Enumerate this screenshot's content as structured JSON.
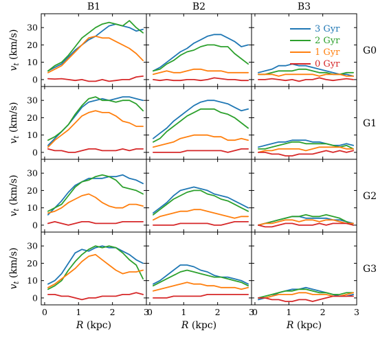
{
  "chart_data": {
    "type": "line",
    "layout": "4x3 grid of line plots",
    "columns": [
      "B1",
      "B2",
      "B3"
    ],
    "rows": [
      "G0",
      "G1",
      "G2",
      "G3"
    ],
    "xlabel": "R (kpc)",
    "ylabel": "v_t (km/s)",
    "ylabel_display": "vt (km/s)",
    "xlim": [
      -0.1,
      3.0
    ],
    "ylim": [
      -4,
      38
    ],
    "xticks": [
      0,
      1,
      2,
      3
    ],
    "yticks": [
      0,
      10,
      20,
      30
    ],
    "xtick_labels": [
      "0",
      "1",
      "2",
      "3"
    ],
    "ytick_labels": [
      "0",
      "10",
      "20",
      "30"
    ],
    "grid": false,
    "legend": {
      "location": "upper-right of panel B3-G0",
      "entries": [
        "3 Gyr",
        "2 Gyr",
        "1 Gyr",
        "0 Gyr"
      ]
    },
    "series_styles": [
      {
        "name": "3 Gyr",
        "color": "#1f77b4"
      },
      {
        "name": "2 Gyr",
        "color": "#2ca02c"
      },
      {
        "name": "1 Gyr",
        "color": "#ff7f0e"
      },
      {
        "name": "0 Gyr",
        "color": "#d62728"
      }
    ],
    "x": [
      0.1,
      0.3,
      0.5,
      0.7,
      0.9,
      1.1,
      1.3,
      1.5,
      1.7,
      1.9,
      2.1,
      2.3,
      2.5,
      2.7,
      2.9
    ],
    "panels": [
      {
        "col": "B1",
        "row": "G0",
        "series": [
          {
            "name": "3 Gyr",
            "values": [
              5,
              7,
              9,
              13,
              17,
              20,
              23,
              25,
              28,
              31,
              32,
              31,
              30,
              28,
              29
            ]
          },
          {
            "name": "2 Gyr",
            "values": [
              5,
              8,
              10,
              14,
              19,
              24,
              27,
              30,
              32,
              33,
              32,
              31,
              34,
              30,
              27
            ]
          },
          {
            "name": "1 Gyr",
            "values": [
              4,
              6,
              8,
              12,
              16,
              20,
              24,
              25,
              24,
              24,
              22,
              20,
              18,
              15,
              11
            ]
          },
          {
            "name": "0 Gyr",
            "values": [
              0.5,
              0.3,
              0.5,
              0,
              -0.5,
              0,
              -1,
              -1,
              0,
              -1,
              -0.5,
              0,
              0,
              1.5,
              2
            ]
          }
        ]
      },
      {
        "col": "B2",
        "row": "G0",
        "series": [
          {
            "name": "3 Gyr",
            "values": [
              5,
              7,
              10,
              13,
              16,
              18,
              21,
              23,
              25,
              26,
              26,
              24,
              22,
              19,
              20
            ]
          },
          {
            "name": "2 Gyr",
            "values": [
              5,
              6,
              9,
              11,
              14,
              16,
              17,
              19,
              20,
              20,
              19,
              19,
              15,
              12,
              9
            ]
          },
          {
            "name": "1 Gyr",
            "values": [
              3,
              4,
              5,
              4,
              4,
              5,
              6,
              6,
              5,
              5,
              5,
              4,
              4,
              4,
              4
            ]
          },
          {
            "name": "0 Gyr",
            "values": [
              0,
              -0.5,
              0,
              -0.5,
              -0.5,
              0,
              0,
              -0.5,
              0,
              1,
              0.5,
              0,
              0,
              -0.5,
              -0.5
            ]
          }
        ]
      },
      {
        "col": "B3",
        "row": "G0",
        "series": [
          {
            "name": "3 Gyr",
            "values": [
              4,
              5,
              6,
              8,
              8,
              9,
              8,
              8,
              7,
              6,
              5,
              4,
              3,
              3,
              2
            ]
          },
          {
            "name": "2 Gyr",
            "values": [
              3,
              3,
              4,
              5,
              5,
              5,
              6,
              6,
              5,
              4,
              4,
              3,
              3,
              4,
              4
            ]
          },
          {
            "name": "1 Gyr",
            "values": [
              3,
              3,
              3,
              2,
              3,
              3,
              3,
              3,
              3,
              2,
              3,
              3,
              3,
              2,
              2
            ]
          },
          {
            "name": "0 Gyr",
            "values": [
              0,
              0,
              0.5,
              0,
              -0.5,
              0,
              -1,
              0,
              0,
              1,
              0,
              -0.5,
              0,
              0.5,
              0
            ]
          }
        ]
      },
      {
        "col": "B1",
        "row": "G1",
        "series": [
          {
            "name": "3 Gyr",
            "values": [
              4,
              8,
              12,
              16,
              21,
              26,
              29,
              30,
              31,
              30,
              31,
              32,
              32,
              31,
              30
            ]
          },
          {
            "name": "2 Gyr",
            "values": [
              7,
              9,
              12,
              16,
              22,
              27,
              31,
              32,
              30,
              30,
              29,
              30,
              30,
              28,
              24
            ]
          },
          {
            "name": "1 Gyr",
            "values": [
              3,
              7,
              10,
              13,
              17,
              21,
              23,
              24,
              23,
              23,
              21,
              18,
              17,
              15,
              15
            ]
          },
          {
            "name": "0 Gyr",
            "values": [
              2,
              1,
              1,
              0,
              0,
              1,
              2,
              2,
              1,
              1,
              1,
              2,
              1,
              2,
              2
            ]
          }
        ]
      },
      {
        "col": "B2",
        "row": "G1",
        "series": [
          {
            "name": "3 Gyr",
            "values": [
              8,
              11,
              14,
              18,
              21,
              24,
              27,
              29,
              30,
              30,
              29,
              28,
              26,
              24,
              25
            ]
          },
          {
            "name": "2 Gyr",
            "values": [
              6,
              8,
              12,
              15,
              18,
              21,
              23,
              25,
              25,
              25,
              23,
              22,
              20,
              17,
              14
            ]
          },
          {
            "name": "1 Gyr",
            "values": [
              3,
              4,
              5,
              6,
              8,
              9,
              10,
              10,
              10,
              9,
              9,
              7,
              7,
              8,
              7
            ]
          },
          {
            "name": "0 Gyr",
            "values": [
              0,
              0,
              0,
              0,
              0,
              1,
              1,
              1,
              1,
              1,
              1,
              0,
              1,
              2,
              2
            ]
          }
        ]
      },
      {
        "col": "B3",
        "row": "G1",
        "series": [
          {
            "name": "3 Gyr",
            "values": [
              3,
              4,
              5,
              6,
              6,
              7,
              7,
              7,
              6,
              6,
              5,
              4,
              4,
              5,
              4
            ]
          },
          {
            "name": "2 Gyr",
            "values": [
              2,
              2,
              3,
              4,
              5,
              6,
              6,
              5,
              5,
              5,
              5,
              4,
              3,
              4,
              2
            ]
          },
          {
            "name": "1 Gyr",
            "values": [
              0,
              1,
              1,
              2,
              2,
              2,
              2,
              1,
              2,
              3,
              3,
              3,
              3,
              2,
              2
            ]
          },
          {
            "name": "0 Gyr",
            "values": [
              0,
              0,
              -1,
              -1,
              -2,
              -2,
              -1,
              -1,
              -1,
              0,
              1,
              0,
              1,
              0,
              1
            ]
          }
        ]
      },
      {
        "col": "B1",
        "row": "G2",
        "series": [
          {
            "name": "3 Gyr",
            "values": [
              6,
              10,
              14,
              19,
              23,
              25,
              27,
              27,
              27,
              28,
              28,
              29,
              27,
              26,
              24
            ]
          },
          {
            "name": "2 Gyr",
            "values": [
              8,
              10,
              12,
              17,
              22,
              25,
              26,
              28,
              29,
              28,
              26,
              22,
              21,
              20,
              18
            ]
          },
          {
            "name": "1 Gyr",
            "values": [
              7,
              8,
              10,
              13,
              15,
              17,
              18,
              16,
              13,
              11,
              10,
              10,
              12,
              12,
              11
            ]
          },
          {
            "name": "0 Gyr",
            "values": [
              1,
              2,
              1,
              0,
              1,
              2,
              2,
              1,
              1,
              1,
              1,
              2,
              2,
              2,
              2
            ]
          }
        ]
      },
      {
        "col": "B2",
        "row": "G2",
        "series": [
          {
            "name": "3 Gyr",
            "values": [
              7,
              10,
              13,
              17,
              20,
              21,
              22,
              21,
              20,
              18,
              17,
              16,
              14,
              12,
              10
            ]
          },
          {
            "name": "2 Gyr",
            "values": [
              6,
              9,
              12,
              15,
              17,
              19,
              20,
              20,
              18,
              17,
              15,
              14,
              12,
              10,
              8
            ]
          },
          {
            "name": "1 Gyr",
            "values": [
              3,
              5,
              6,
              7,
              8,
              8,
              9,
              9,
              8,
              7,
              6,
              5,
              4,
              5,
              5
            ]
          },
          {
            "name": "0 Gyr",
            "values": [
              0,
              0,
              0,
              0,
              1,
              1,
              1,
              1,
              1,
              0,
              0,
              1,
              2,
              2,
              2
            ]
          }
        ]
      },
      {
        "col": "B3",
        "row": "G2",
        "series": [
          {
            "name": "3 Gyr",
            "values": [
              0,
              1,
              2,
              3,
              4,
              5,
              5,
              4,
              4,
              4,
              4,
              3,
              3,
              2,
              1
            ]
          },
          {
            "name": "2 Gyr",
            "values": [
              0,
              1,
              2,
              3,
              4,
              5,
              5,
              6,
              5,
              5,
              6,
              5,
              4,
              2,
              0
            ]
          },
          {
            "name": "1 Gyr",
            "values": [
              0,
              1,
              1,
              2,
              3,
              3,
              2,
              3,
              3,
              2,
              3,
              3,
              2,
              1,
              1
            ]
          },
          {
            "name": "0 Gyr",
            "values": [
              0,
              -1,
              -1,
              0,
              1,
              1,
              0,
              0,
              0,
              1,
              0,
              1,
              1,
              1,
              0
            ]
          }
        ]
      },
      {
        "col": "B1",
        "row": "G3",
        "series": [
          {
            "name": "3 Gyr",
            "values": [
              8,
              10,
              14,
              20,
              26,
              28,
              27,
              29,
              30,
              29,
              29,
              27,
              25,
              22,
              20
            ]
          },
          {
            "name": "2 Gyr",
            "values": [
              5,
              7,
              10,
              16,
              21,
              25,
              28,
              30,
              29,
              30,
              29,
              26,
              22,
              19,
              11
            ]
          },
          {
            "name": "1 Gyr",
            "values": [
              6,
              8,
              11,
              14,
              17,
              21,
              24,
              25,
              22,
              19,
              16,
              14,
              15,
              15,
              16
            ]
          },
          {
            "name": "0 Gyr",
            "values": [
              2,
              2,
              1,
              1,
              0,
              -1,
              0,
              0,
              1,
              1,
              1,
              2,
              2,
              3,
              2
            ]
          }
        ]
      },
      {
        "col": "B2",
        "row": "G3",
        "series": [
          {
            "name": "3 Gyr",
            "values": [
              8,
              10,
              13,
              16,
              19,
              19,
              18,
              16,
              15,
              13,
              12,
              12,
              11,
              10,
              8
            ]
          },
          {
            "name": "2 Gyr",
            "values": [
              7,
              9,
              11,
              13,
              15,
              16,
              15,
              14,
              13,
              12,
              12,
              11,
              10,
              9,
              7
            ]
          },
          {
            "name": "1 Gyr",
            "values": [
              4,
              5,
              6,
              7,
              8,
              9,
              8,
              8,
              7,
              7,
              6,
              6,
              6,
              5,
              6
            ]
          },
          {
            "name": "0 Gyr",
            "values": [
              0,
              0,
              0,
              1,
              1,
              1,
              1,
              1,
              2,
              2,
              2,
              2,
              2,
              2,
              2
            ]
          }
        ]
      },
      {
        "col": "B3",
        "row": "G3",
        "series": [
          {
            "name": "3 Gyr",
            "values": [
              -1,
              0,
              1,
              3,
              4,
              5,
              5,
              6,
              5,
              4,
              3,
              2,
              1,
              1,
              2
            ]
          },
          {
            "name": "2 Gyr",
            "values": [
              0,
              1,
              2,
              3,
              4,
              4,
              5,
              5,
              4,
              3,
              3,
              2,
              2,
              3,
              3
            ]
          },
          {
            "name": "1 Gyr",
            "values": [
              0,
              0,
              1,
              2,
              2,
              2,
              3,
              3,
              2,
              2,
              2,
              1,
              1,
              2,
              3
            ]
          },
          {
            "name": "0 Gyr",
            "values": [
              0,
              0,
              -1,
              -1,
              -2,
              -2,
              -1,
              -1,
              -2,
              -1,
              0,
              1,
              1,
              1,
              1
            ]
          }
        ]
      }
    ]
  }
}
